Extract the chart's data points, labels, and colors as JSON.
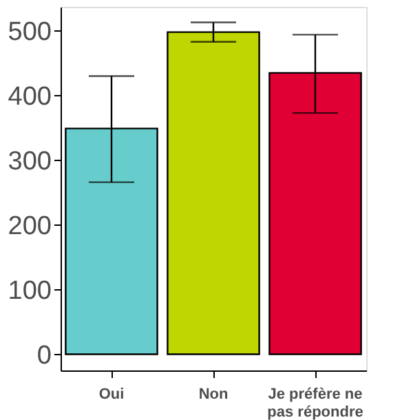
{
  "chart_data": {
    "type": "bar",
    "categories": [
      "Oui",
      "Non",
      "Je préfère ne pas répondre"
    ],
    "values": [
      349,
      498,
      435
    ],
    "colors": [
      "#66cdcc",
      "#bfd600",
      "#e00034"
    ],
    "errors": [
      [
        266,
        430
      ],
      [
        483,
        513
      ],
      [
        373,
        494
      ]
    ],
    "ylim": [
      -25,
      537
    ],
    "yticks": [
      0,
      100,
      200,
      300,
      400,
      500
    ],
    "grid": false,
    "legend": false
  }
}
